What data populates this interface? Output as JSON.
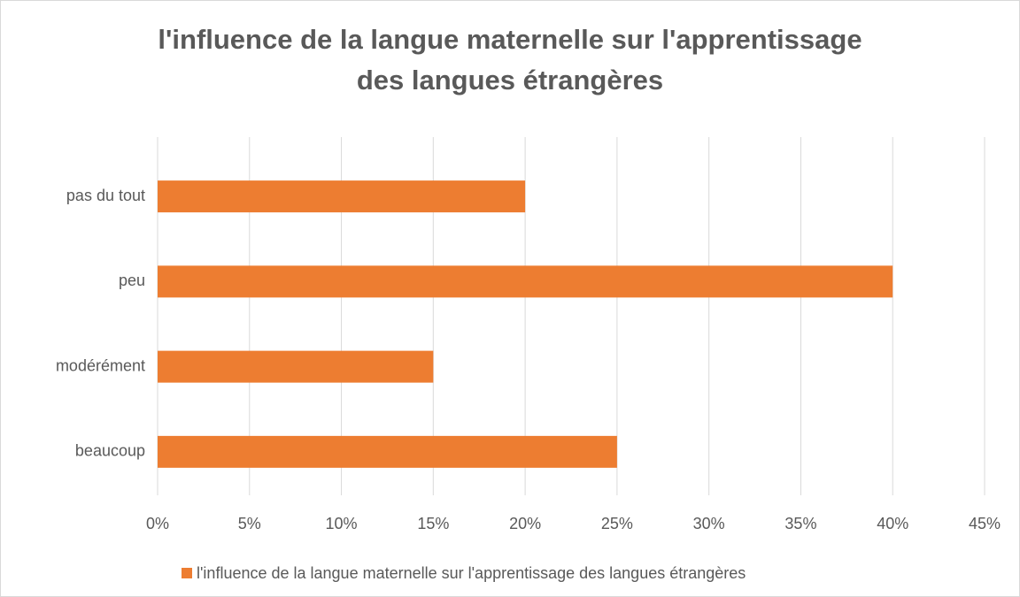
{
  "chart_data": {
    "type": "bar",
    "orientation": "horizontal",
    "title": "l'influence de la langue maternelle sur l'apprentissage des langues étrangères",
    "categories": [
      "pas du tout",
      "peu",
      "modérément",
      "beaucoup"
    ],
    "series": [
      {
        "name": "l'influence de la langue maternelle sur l'apprentissage des langues étrangères",
        "color": "#ed7d31",
        "values": [
          20,
          40,
          15,
          25
        ]
      }
    ],
    "xlim": [
      0,
      45
    ],
    "xticks": [
      {
        "value": 0,
        "label": "0%"
      },
      {
        "value": 5,
        "label": "5%"
      },
      {
        "value": 10,
        "label": "10%"
      },
      {
        "value": 15,
        "label": "15%"
      },
      {
        "value": 20,
        "label": "20%"
      },
      {
        "value": 25,
        "label": "25%"
      },
      {
        "value": 30,
        "label": "30%"
      },
      {
        "value": 35,
        "label": "35%"
      },
      {
        "value": 40,
        "label": "40%"
      },
      {
        "value": 45,
        "label": "45%"
      }
    ],
    "grid": true,
    "legend": "bottom"
  }
}
